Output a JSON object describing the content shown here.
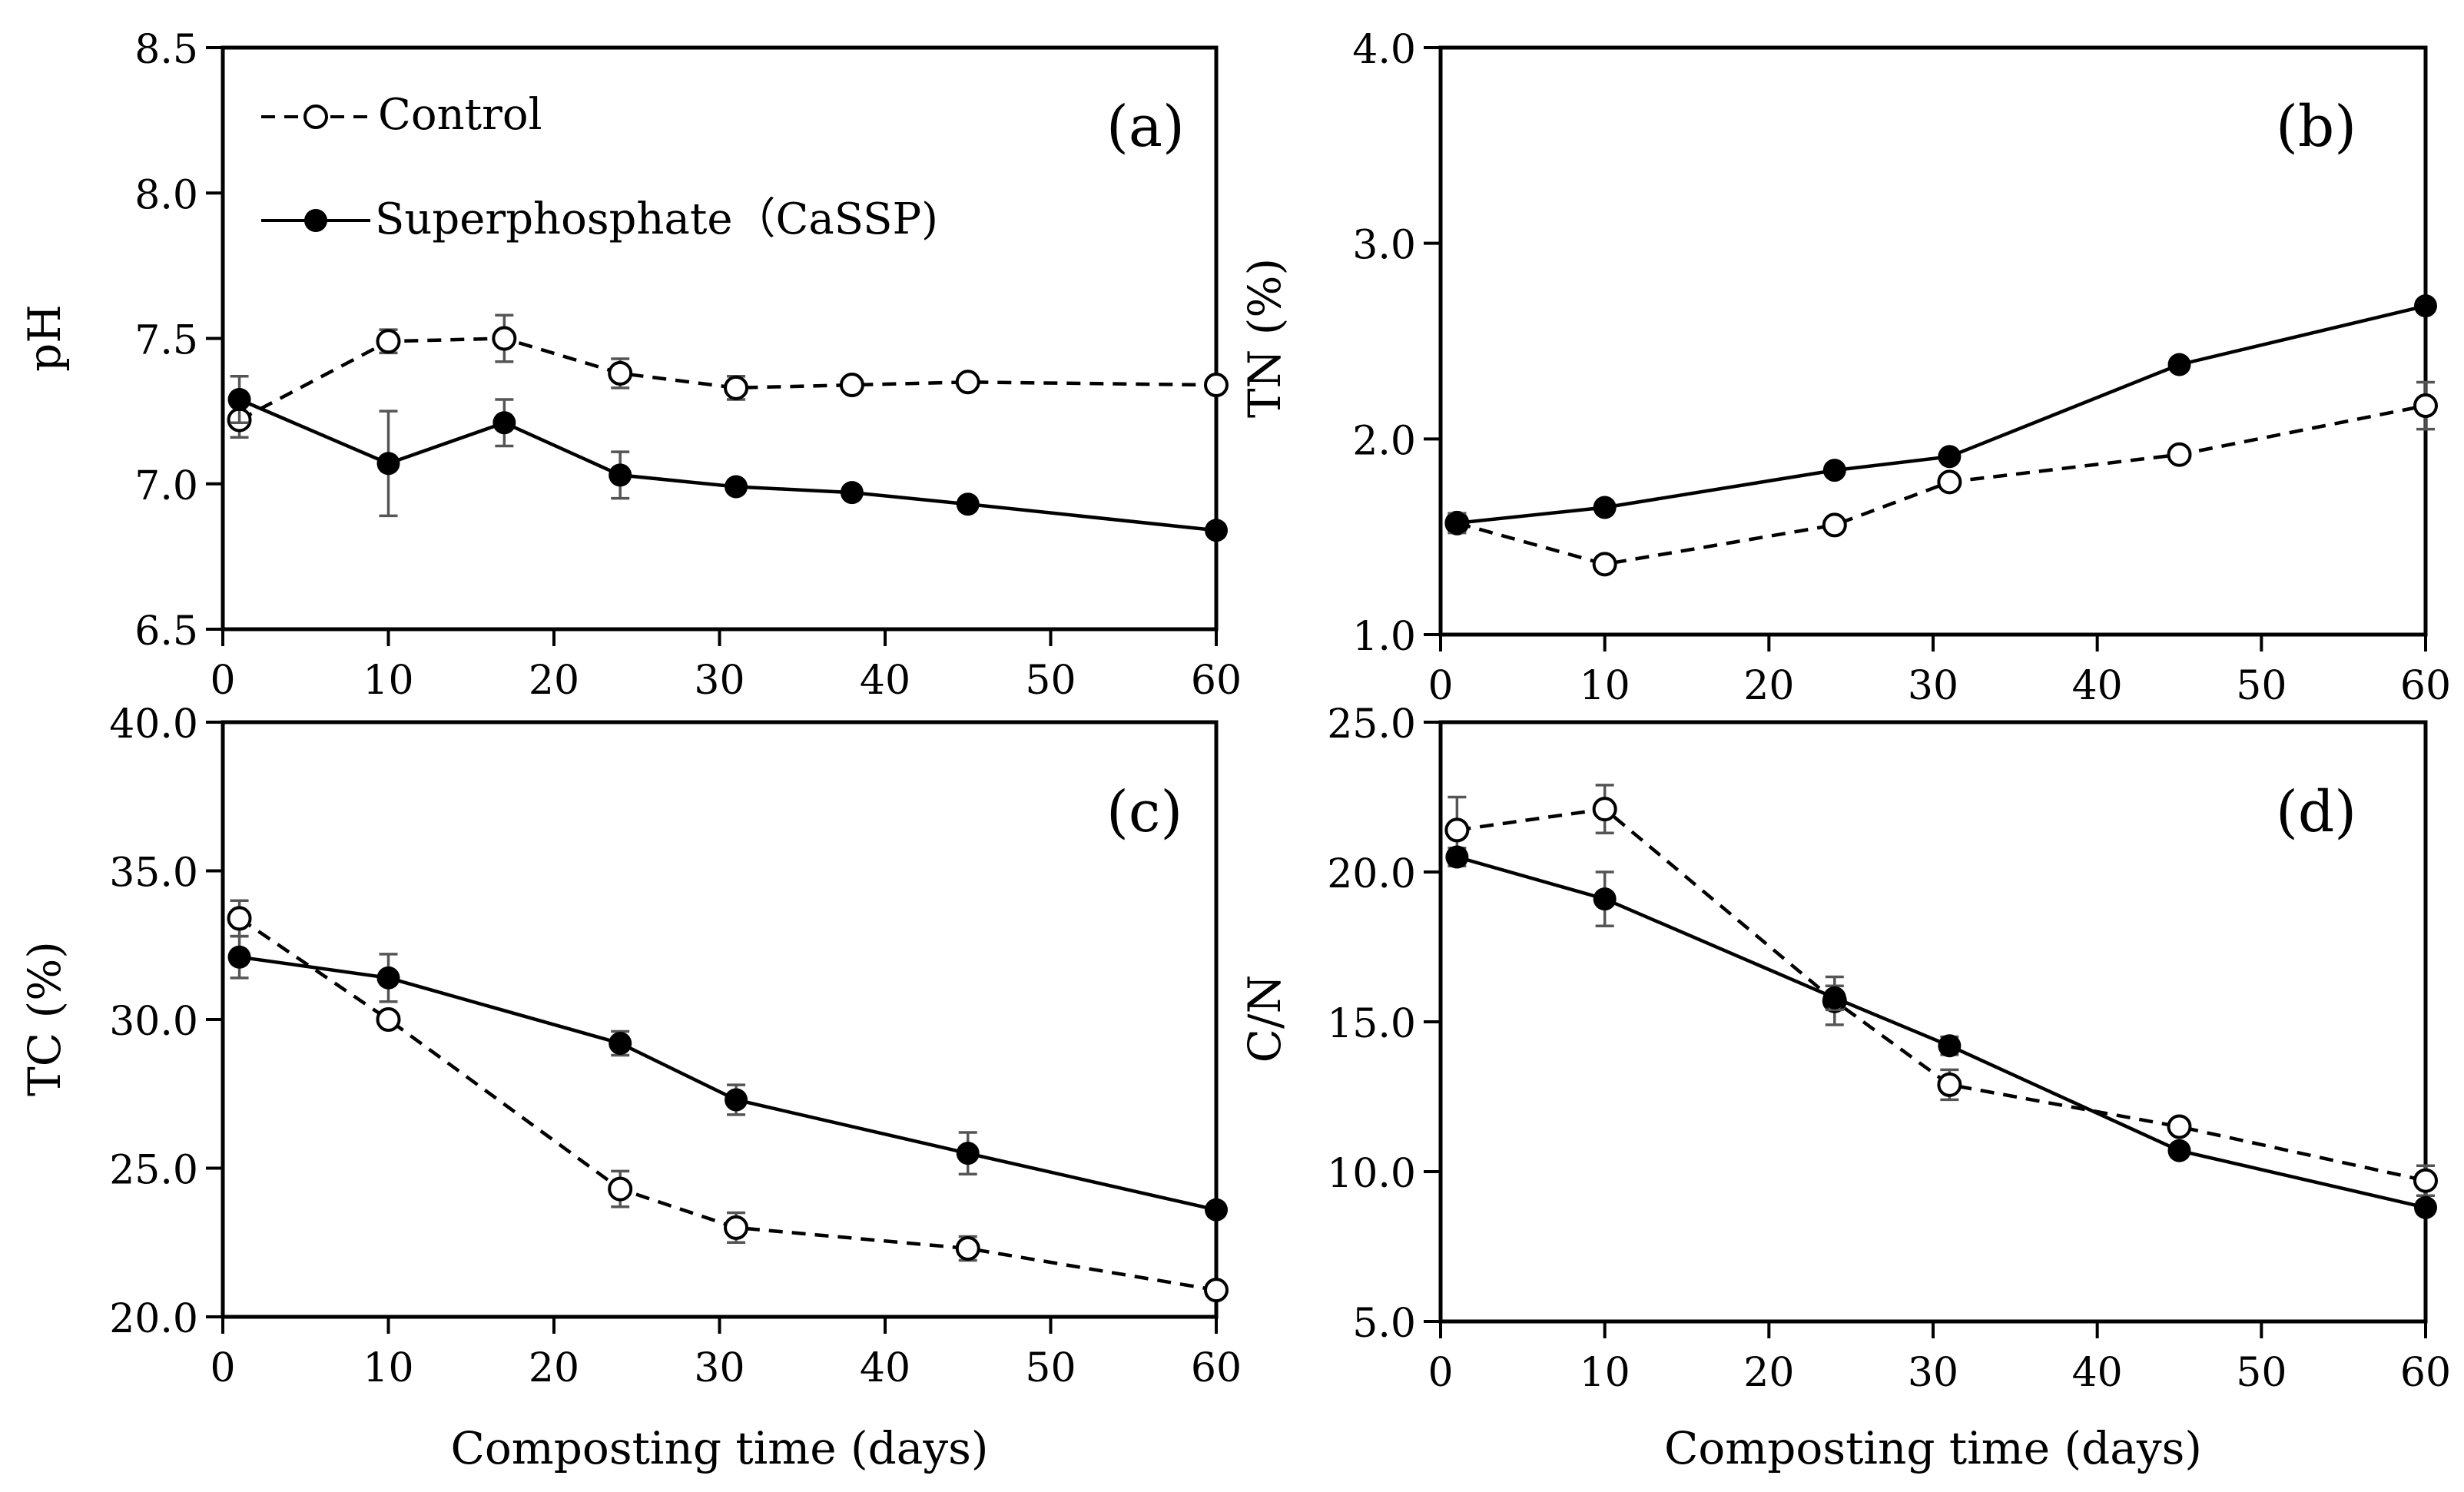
{
  "figure": {
    "xlabel": "Composting time (days)",
    "legend": {
      "control": "Control",
      "cassp": "Superphosphate（CaSSP)"
    }
  },
  "chart_data": [
    {
      "type": "line",
      "panel_label": "(a)",
      "ylabel": "pH",
      "xlabel": "",
      "xlim": [
        0,
        60
      ],
      "xticks": [
        0,
        10,
        20,
        30,
        40,
        50,
        60
      ],
      "ylim": [
        6.5,
        8.5
      ],
      "yticks": [
        "6.5",
        "7.0",
        "7.5",
        "8.0",
        "8.5"
      ],
      "grid": false,
      "legend_position": "top-left",
      "series": [
        {
          "name": "Control",
          "style": "dashed-open",
          "x": [
            1,
            10,
            17,
            24,
            31,
            38,
            45,
            60
          ],
          "y": [
            7.22,
            7.49,
            7.5,
            7.38,
            7.33,
            7.34,
            7.35,
            7.34
          ],
          "err": [
            0.06,
            0.04,
            0.08,
            0.05,
            0.04,
            0.02,
            0.02,
            0.02
          ]
        },
        {
          "name": "Superphosphate（CaSSP)",
          "style": "solid-filled",
          "x": [
            1,
            10,
            17,
            24,
            31,
            38,
            45,
            60
          ],
          "y": [
            7.29,
            7.07,
            7.21,
            7.03,
            6.99,
            6.97,
            6.93,
            6.84
          ],
          "err": [
            0.08,
            0.18,
            0.08,
            0.08,
            0.02,
            0.02,
            0.02,
            0.02
          ]
        }
      ]
    },
    {
      "type": "line",
      "panel_label": "(b)",
      "ylabel": "TN (%)",
      "xlabel": "",
      "xlim": [
        0,
        60
      ],
      "xticks": [
        0,
        10,
        20,
        30,
        40,
        50,
        60
      ],
      "ylim": [
        1.0,
        4.0
      ],
      "yticks": [
        "1.0",
        "2.0",
        "3.0",
        "4.0"
      ],
      "grid": false,
      "series": [
        {
          "name": "Control",
          "style": "dashed-open",
          "x": [
            1,
            10,
            24,
            31,
            45,
            60
          ],
          "y": [
            1.57,
            1.36,
            1.56,
            1.78,
            1.92,
            2.17
          ],
          "err": [
            0.04,
            0.02,
            0.03,
            0.03,
            0.02,
            0.12
          ]
        },
        {
          "name": "Superphosphate（CaSSP)",
          "style": "solid-filled",
          "x": [
            1,
            10,
            24,
            31,
            45,
            60
          ],
          "y": [
            1.57,
            1.65,
            1.84,
            1.91,
            2.38,
            2.68
          ],
          "err": [
            0.05,
            0.02,
            0.02,
            0.02,
            0.02,
            0.02
          ]
        }
      ]
    },
    {
      "type": "line",
      "panel_label": "(c)",
      "ylabel": "TC (%)",
      "xlabel": "Composting time (days)",
      "xlim": [
        0,
        60
      ],
      "xticks": [
        0,
        10,
        20,
        30,
        40,
        50,
        60
      ],
      "ylim": [
        20.0,
        40.0
      ],
      "yticks": [
        "20.0",
        "25.0",
        "30.0",
        "35.0",
        "40.0"
      ],
      "grid": false,
      "series": [
        {
          "name": "Control",
          "style": "dashed-open",
          "x": [
            1,
            10,
            24,
            31,
            45,
            60
          ],
          "y": [
            33.4,
            30.0,
            24.3,
            23.0,
            22.3,
            20.9
          ],
          "err": [
            0.6,
            0.2,
            0.6,
            0.5,
            0.4,
            0.2
          ]
        },
        {
          "name": "Superphosphate（CaSSP)",
          "style": "solid-filled",
          "x": [
            1,
            10,
            24,
            31,
            45,
            60
          ],
          "y": [
            32.1,
            31.4,
            29.2,
            27.3,
            25.5,
            23.6
          ],
          "err": [
            0.7,
            0.8,
            0.4,
            0.5,
            0.7,
            0.2
          ]
        }
      ]
    },
    {
      "type": "line",
      "panel_label": "(d)",
      "ylabel": "C/N",
      "xlabel": "Composting time (days)",
      "xlim": [
        0,
        60
      ],
      "xticks": [
        0,
        10,
        20,
        30,
        40,
        50,
        60
      ],
      "ylim": [
        5.0,
        25.0
      ],
      "yticks": [
        "5.0",
        "10.0",
        "15.0",
        "20.0",
        "25.0"
      ],
      "grid": false,
      "series": [
        {
          "name": "Control",
          "style": "dashed-open",
          "x": [
            1,
            10,
            24,
            31,
            45,
            60
          ],
          "y": [
            21.4,
            22.1,
            15.7,
            12.9,
            11.5,
            9.7
          ],
          "err": [
            1.1,
            0.8,
            0.8,
            0.5,
            0.2,
            0.5
          ]
        },
        {
          "name": "Superphosphate（CaSSP)",
          "style": "solid-filled",
          "x": [
            1,
            10,
            24,
            31,
            45,
            60
          ],
          "y": [
            20.5,
            19.1,
            15.8,
            14.2,
            10.7,
            8.8
          ],
          "err": [
            0.3,
            0.9,
            0.4,
            0.3,
            0.2,
            0.2
          ]
        }
      ]
    }
  ]
}
